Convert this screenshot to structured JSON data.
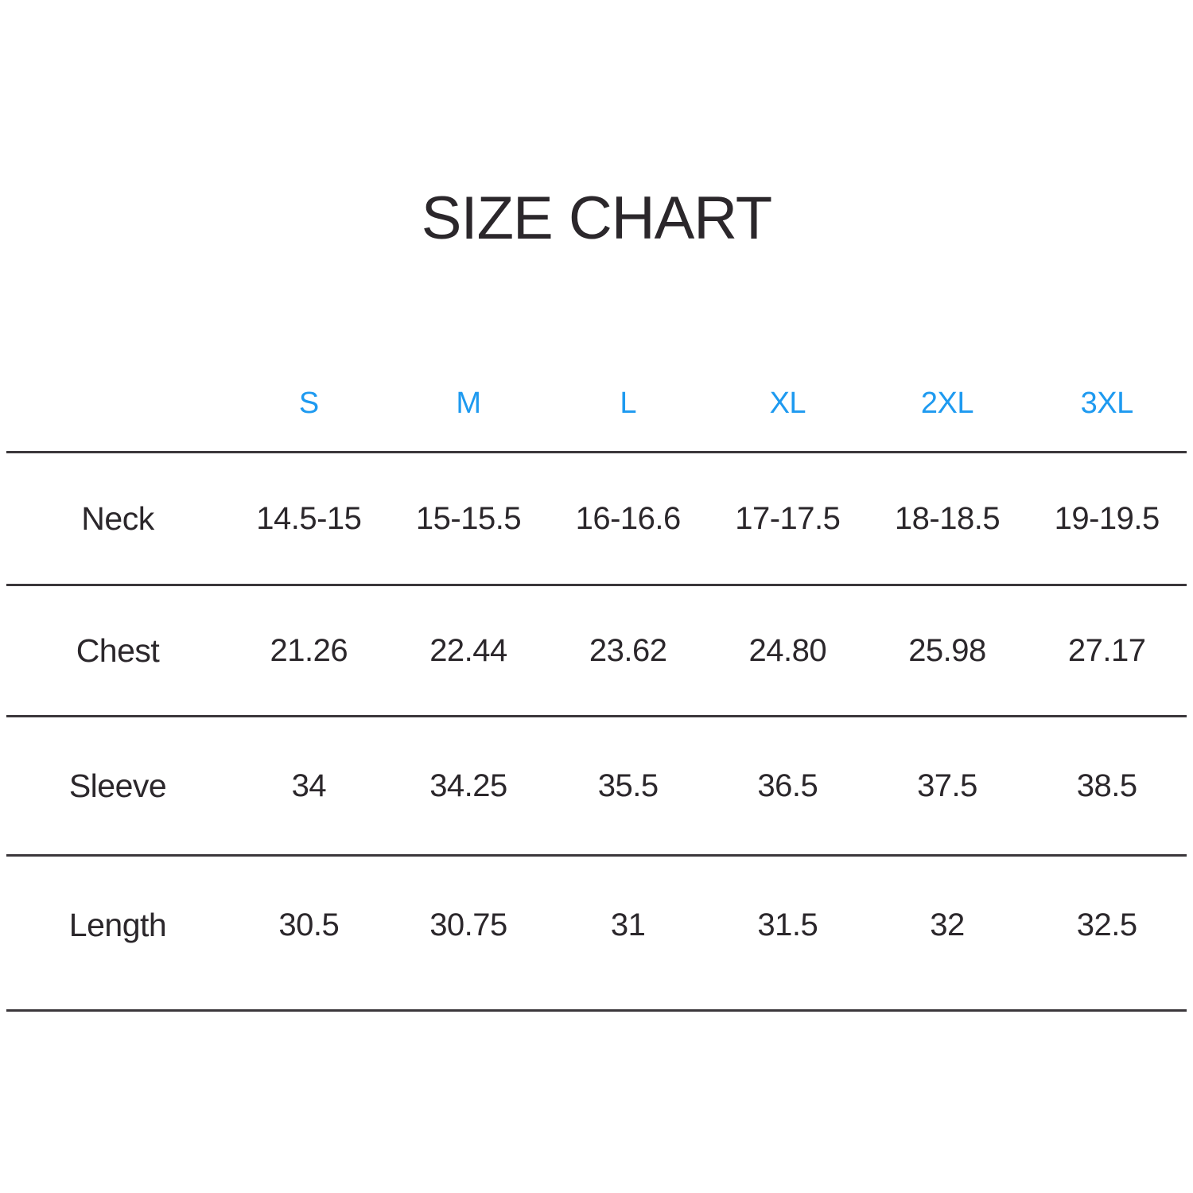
{
  "title": "SIZE CHART",
  "accent_color": "#1e9af0",
  "text_color": "#2b272b",
  "rule_color": "#3b373b",
  "chart_data": {
    "type": "table",
    "title": "SIZE CHART",
    "columns": [
      "S",
      "M",
      "L",
      "XL",
      "2XL",
      "3XL"
    ],
    "rows": [
      {
        "label": "Neck",
        "values": [
          "14.5-15",
          "15-15.5",
          "16-16.6",
          "17-17.5",
          "18-18.5",
          "19-19.5"
        ]
      },
      {
        "label": "Chest",
        "values": [
          "21.26",
          "22.44",
          "23.62",
          "24.80",
          "25.98",
          "27.17"
        ]
      },
      {
        "label": "Sleeve",
        "values": [
          "34",
          "34.25",
          "35.5",
          "36.5",
          "37.5",
          "38.5"
        ]
      },
      {
        "label": "Length",
        "values": [
          "30.5",
          "30.75",
          "31",
          "31.5",
          "32",
          "32.5"
        ]
      }
    ],
    "layout": {
      "legend": "none",
      "grid": "horizontal-rules-only",
      "header_position": "top"
    }
  }
}
